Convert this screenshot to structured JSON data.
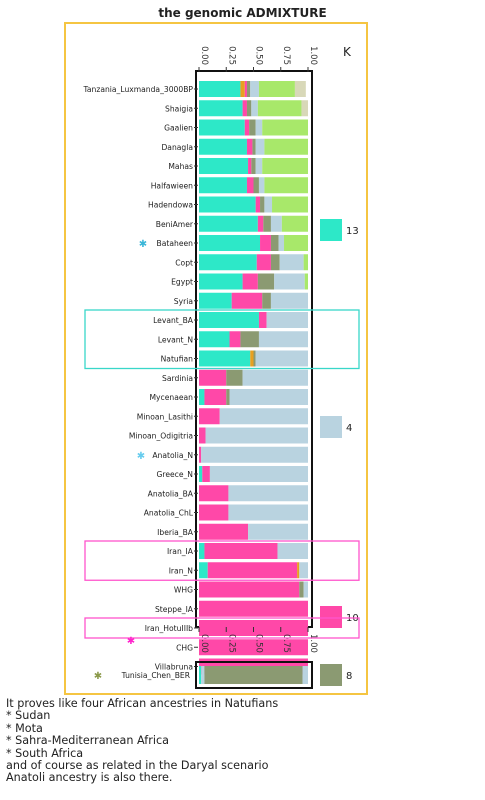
{
  "title": "the genomic ADMIXTURE",
  "chart_data": {
    "type": "bar",
    "orientation": "horizontal-stacked",
    "xlim": [
      0,
      1
    ],
    "x_ticks": [
      "0.00",
      "0.25",
      "0.50",
      "0.75",
      "1.00"
    ],
    "legend_title": "K",
    "legend": [
      {
        "name": "13",
        "color": "#2de8c8"
      },
      {
        "name": "4",
        "color": "#b9d3e0"
      },
      {
        "name": "10",
        "color": "#ff48a8"
      },
      {
        "name": "8",
        "color": "#8b9a72"
      }
    ],
    "component_colors": {
      "A": "#2de8c8",
      "B": "#ff48a8",
      "C": "#b9d3e0",
      "D": "#8b9a72",
      "E": "#a8e86a",
      "F": "#e8a020",
      "G": "#d8d8b8"
    },
    "samples": [
      {
        "label": "Tanzania_Luxmanda_3000BP",
        "parts": [
          [
            "A",
            0.38
          ],
          [
            "F",
            0.04
          ],
          [
            "B",
            0.02
          ],
          [
            "D",
            0.03
          ],
          [
            "C",
            0.08
          ],
          [
            "E",
            0.33
          ],
          [
            "G",
            0.1
          ]
        ]
      },
      {
        "label": "Shaigia",
        "parts": [
          [
            "A",
            0.4
          ],
          [
            "B",
            0.04
          ],
          [
            "D",
            0.04
          ],
          [
            "C",
            0.06
          ],
          [
            "E",
            0.4
          ],
          [
            "G",
            0.06
          ]
        ]
      },
      {
        "label": "Gaalien",
        "parts": [
          [
            "A",
            0.42
          ],
          [
            "B",
            0.04
          ],
          [
            "D",
            0.06
          ],
          [
            "C",
            0.06
          ],
          [
            "E",
            0.42
          ]
        ]
      },
      {
        "label": "Danagla",
        "parts": [
          [
            "A",
            0.44
          ],
          [
            "B",
            0.05
          ],
          [
            "D",
            0.03
          ],
          [
            "C",
            0.08
          ],
          [
            "E",
            0.4
          ]
        ]
      },
      {
        "label": "Mahas",
        "parts": [
          [
            "A",
            0.45
          ],
          [
            "B",
            0.03
          ],
          [
            "D",
            0.04
          ],
          [
            "C",
            0.06
          ],
          [
            "E",
            0.42
          ]
        ]
      },
      {
        "label": "Halfawieen",
        "parts": [
          [
            "A",
            0.44
          ],
          [
            "B",
            0.06
          ],
          [
            "D",
            0.05
          ],
          [
            "C",
            0.05
          ],
          [
            "E",
            0.4
          ]
        ]
      },
      {
        "label": "Hadendowa",
        "parts": [
          [
            "A",
            0.52
          ],
          [
            "B",
            0.04
          ],
          [
            "D",
            0.04
          ],
          [
            "C",
            0.07
          ],
          [
            "E",
            0.33
          ]
        ]
      },
      {
        "label": "BeniAmer",
        "parts": [
          [
            "A",
            0.54
          ],
          [
            "B",
            0.05
          ],
          [
            "D",
            0.07
          ],
          [
            "C",
            0.1
          ],
          [
            "E",
            0.24
          ]
        ]
      },
      {
        "label": "Bataheen",
        "parts": [
          [
            "A",
            0.56
          ],
          [
            "B",
            0.1
          ],
          [
            "D",
            0.07
          ],
          [
            "C",
            0.05
          ],
          [
            "E",
            0.22
          ]
        ]
      },
      {
        "label": "Copt",
        "parts": [
          [
            "A",
            0.53
          ],
          [
            "B",
            0.13
          ],
          [
            "D",
            0.08
          ],
          [
            "C",
            0.22
          ],
          [
            "E",
            0.04
          ]
        ]
      },
      {
        "label": "Egypt",
        "parts": [
          [
            "A",
            0.4
          ],
          [
            "B",
            0.14
          ],
          [
            "D",
            0.15
          ],
          [
            "C",
            0.28
          ],
          [
            "E",
            0.03
          ]
        ]
      },
      {
        "label": "Syria",
        "parts": [
          [
            "A",
            0.3
          ],
          [
            "B",
            0.28
          ],
          [
            "D",
            0.08
          ],
          [
            "C",
            0.34
          ]
        ]
      },
      {
        "label": "Levant_BA",
        "parts": [
          [
            "A",
            0.55
          ],
          [
            "B",
            0.07
          ],
          [
            "C",
            0.38
          ]
        ]
      },
      {
        "label": "Levant_N",
        "parts": [
          [
            "A",
            0.28
          ],
          [
            "B",
            0.1
          ],
          [
            "D",
            0.17
          ],
          [
            "C",
            0.45
          ]
        ]
      },
      {
        "label": "Natufian",
        "parts": [
          [
            "A",
            0.47
          ],
          [
            "F",
            0.03
          ],
          [
            "D",
            0.02
          ],
          [
            "C",
            0.48
          ]
        ]
      },
      {
        "label": "Sardinia",
        "parts": [
          [
            "B",
            0.25
          ],
          [
            "D",
            0.15
          ],
          [
            "C",
            0.6
          ]
        ]
      },
      {
        "label": "Mycenaean",
        "parts": [
          [
            "A",
            0.05
          ],
          [
            "B",
            0.2
          ],
          [
            "D",
            0.03
          ],
          [
            "C",
            0.72
          ]
        ]
      },
      {
        "label": "Minoan_Lasithi",
        "parts": [
          [
            "B",
            0.19
          ],
          [
            "C",
            0.81
          ]
        ]
      },
      {
        "label": "Minoan_Odigitria",
        "parts": [
          [
            "B",
            0.06
          ],
          [
            "C",
            0.94
          ]
        ]
      },
      {
        "label": "Anatolia_N",
        "parts": [
          [
            "B",
            0.02
          ],
          [
            "C",
            0.98
          ]
        ]
      },
      {
        "label": "Greece_N",
        "parts": [
          [
            "A",
            0.03
          ],
          [
            "B",
            0.07
          ],
          [
            "C",
            0.9
          ]
        ]
      },
      {
        "label": "Anatolia_BA",
        "parts": [
          [
            "B",
            0.27
          ],
          [
            "C",
            0.73
          ]
        ]
      },
      {
        "label": "Anatolia_ChL",
        "parts": [
          [
            "B",
            0.27
          ],
          [
            "C",
            0.73
          ]
        ]
      },
      {
        "label": "Iberia_BA",
        "parts": [
          [
            "B",
            0.45
          ],
          [
            "C",
            0.55
          ]
        ]
      },
      {
        "label": "Iran_IA",
        "parts": [
          [
            "A",
            0.05
          ],
          [
            "B",
            0.67
          ],
          [
            "C",
            0.28
          ]
        ]
      },
      {
        "label": "Iran_N",
        "parts": [
          [
            "A",
            0.08
          ],
          [
            "B",
            0.82
          ],
          [
            "F",
            0.02
          ],
          [
            "C",
            0.08
          ]
        ]
      },
      {
        "label": "WHG",
        "parts": [
          [
            "B",
            0.92
          ],
          [
            "D",
            0.04
          ],
          [
            "C",
            0.04
          ]
        ]
      },
      {
        "label": "Steppe_IA",
        "parts": [
          [
            "B",
            1.0
          ]
        ]
      },
      {
        "label": "Iran_HotuIIIb",
        "parts": [
          [
            "B",
            1.0
          ]
        ]
      },
      {
        "label": "CHG",
        "parts": [
          [
            "B",
            1.0
          ]
        ]
      },
      {
        "label": "Villabruna",
        "parts": [
          [
            "B",
            1.0
          ]
        ]
      }
    ],
    "extra_sample": {
      "label": "Tunisia_Chen_BER",
      "parts": [
        [
          "A",
          0.02
        ],
        [
          "C",
          0.03
        ],
        [
          "D",
          0.9
        ],
        [
          "C",
          0.05
        ]
      ]
    },
    "markers": [
      {
        "label": "Bataheen",
        "color": "#3ab6d8",
        "text": "✱"
      },
      {
        "label": "Anatolia_N",
        "color": "#66ccee",
        "text": "✱"
      },
      {
        "label": "Iran_HotuIIIb",
        "color": "#ff22cc",
        "text": "✱"
      },
      {
        "label": "Tunisia_Chen_BER",
        "color": "#8b9a4a",
        "text": "✱"
      }
    ],
    "boxes": [
      {
        "from": "Levant_BA",
        "to": "Natufian",
        "color": "#39d7c9"
      },
      {
        "from": "Iran_IA",
        "to": "Iran_N",
        "color": "#ff55cc"
      },
      {
        "from": "Iran_HotuIIIb",
        "to": "Iran_HotuIIIb",
        "color": "#ff55cc"
      }
    ]
  },
  "caption": {
    "lines": [
      "It proves like four African ancestries in Natufians",
      "* Sudan",
      "* Mota",
      "* Sahra-Mediterranean Africa",
      "* South Africa",
      "and of course as related in the Daryal scenario",
      "Anatoli ancestry is also there."
    ]
  }
}
